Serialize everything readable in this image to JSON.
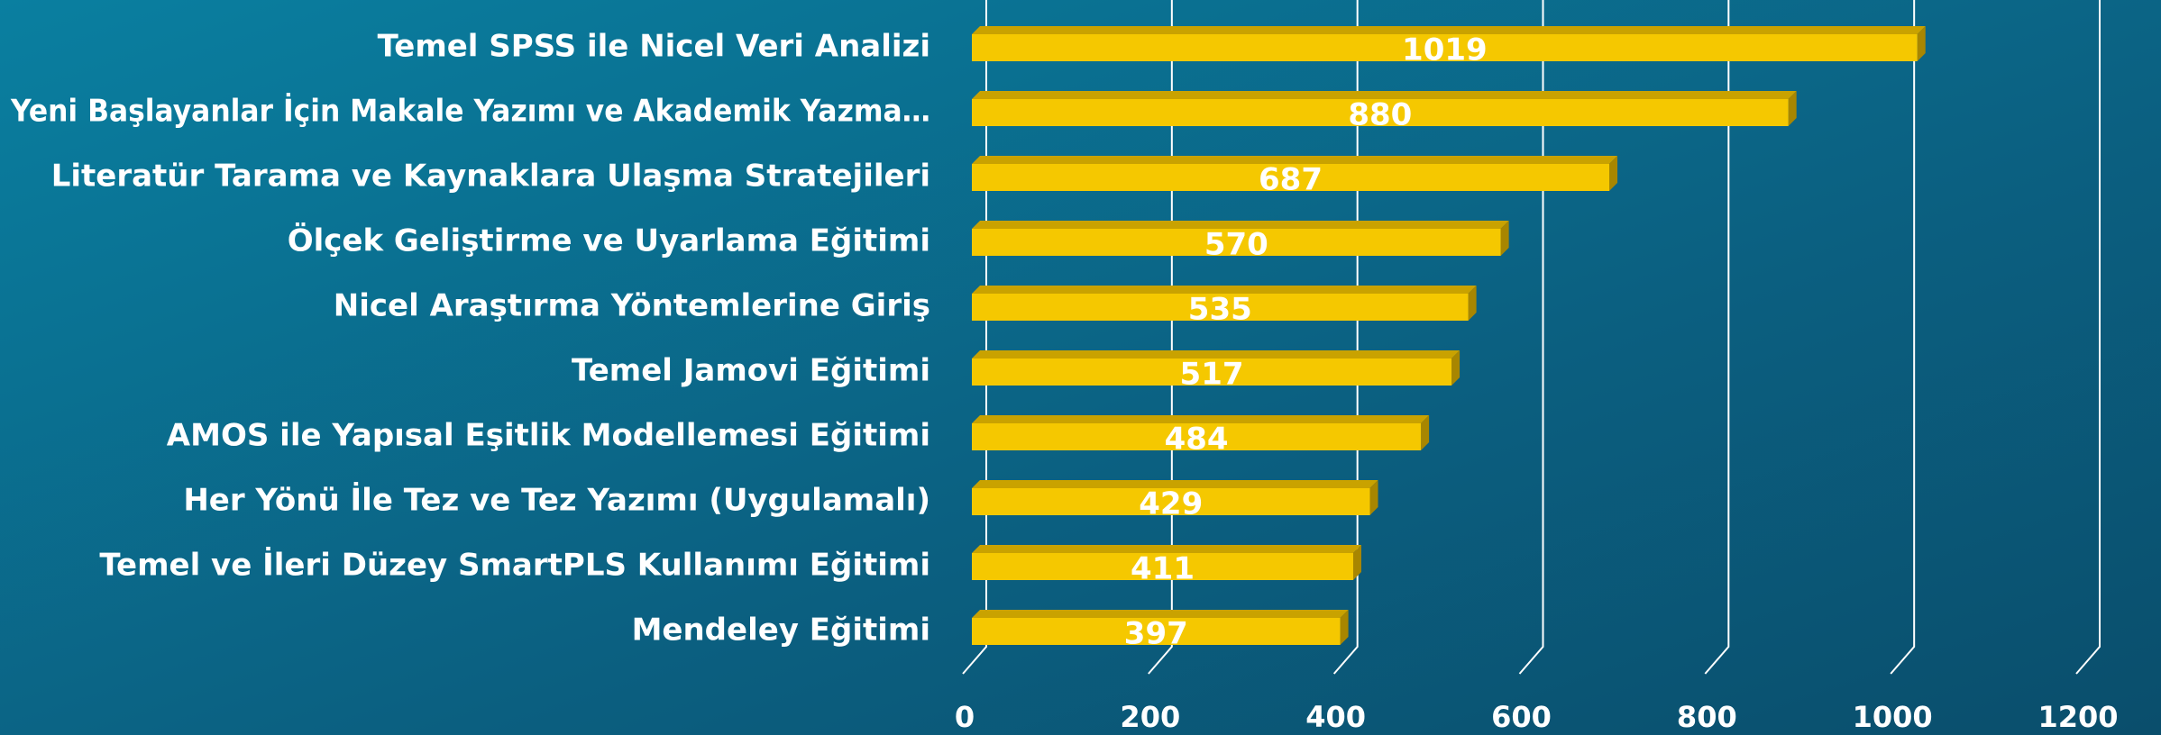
{
  "chart_data": {
    "type": "bar",
    "orientation": "horizontal",
    "categories": [
      "Temel SPSS ile Nicel Veri Analizi",
      "Yeni Başlayanlar İçin Makale Yazımı ve Akademik Yazma…",
      "Literatür Tarama ve Kaynaklara Ulaşma Stratejileri",
      "Ölçek Geliştirme ve Uyarlama Eğitimi",
      "Nicel Araştırma Yöntemlerine Giriş",
      "Temel Jamovi Eğitimi",
      "AMOS ile Yapısal Eşitlik Modellemesi Eğitimi",
      "Her Yönü İle Tez ve Tez Yazımı  (Uygulamalı)",
      "Temel ve İleri  Düzey SmartPLS Kullanımı Eğitimi",
      "Mendeley Eğitimi"
    ],
    "values": [
      1019,
      880,
      687,
      570,
      535,
      517,
      484,
      429,
      411,
      397
    ],
    "color": "#f5c800",
    "xlim": [
      0,
      1200
    ],
    "xticks": [
      0,
      200,
      400,
      600,
      800,
      1000,
      1200
    ],
    "grid": true
  }
}
